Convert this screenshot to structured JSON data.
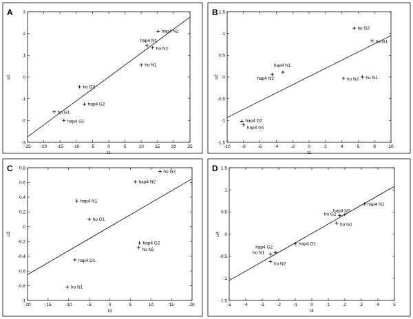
{
  "chart_data": [
    {
      "panel": "A",
      "type": "scatter",
      "xlabel": "t1",
      "ylabel": "u1",
      "xlim": [
        -25,
        25
      ],
      "ylim": [
        -3,
        3
      ],
      "xticks": [
        -25,
        -20,
        -15,
        -10,
        -5,
        0,
        5,
        10,
        15,
        20,
        25
      ],
      "yticks": [
        -3,
        -2,
        -1,
        0,
        1,
        2,
        3
      ],
      "points": [
        {
          "label": "hap4 N2",
          "x": 15.2,
          "y": 2.1
        },
        {
          "label": "hap4 N1",
          "x": 11.8,
          "y": 1.45
        },
        {
          "label": "ho N2",
          "x": 13.5,
          "y": 1.35
        },
        {
          "label": "ho N1",
          "x": 10.0,
          "y": 0.55
        },
        {
          "label": "ho G2",
          "x": -9.0,
          "y": -0.45
        },
        {
          "label": "hap4 G2",
          "x": -7.5,
          "y": -1.25
        },
        {
          "label": "ho G1",
          "x": -16.8,
          "y": -1.6
        },
        {
          "label": "hap4 G1",
          "x": -13.8,
          "y": -2.0
        }
      ],
      "fit_line": {
        "x": [
          -25,
          25
        ],
        "y": [
          -2.75,
          2.75
        ]
      }
    },
    {
      "panel": "B",
      "type": "scatter",
      "xlabel": "t2",
      "ylabel": "u2",
      "xlim": [
        -10,
        10
      ],
      "ylim": [
        -1.5,
        1.5
      ],
      "xticks": [
        -10,
        -8,
        -6,
        -4,
        -2,
        0,
        2,
        4,
        6,
        8,
        10
      ],
      "yticks": [
        -1.5,
        -1,
        -0.5,
        0,
        0.5,
        1,
        1.5
      ],
      "points": [
        {
          "label": "ho G2",
          "x": 5.5,
          "y": 1.12
        },
        {
          "label": "ho G1",
          "x": 7.7,
          "y": 0.83
        },
        {
          "label": "hap4 N1",
          "x": -3.2,
          "y": 0.11
        },
        {
          "label": "hap4 N2",
          "x": -4.5,
          "y": 0.06
        },
        {
          "label": "ho N2",
          "x": 4.2,
          "y": -0.03
        },
        {
          "label": "ho N1",
          "x": 6.5,
          "y": 0.0
        },
        {
          "label": "hap4 G2",
          "x": -8.2,
          "y": -1.02
        },
        {
          "label": "hap4 G1",
          "x": -8.0,
          "y": -1.1
        }
      ],
      "fit_line": {
        "x": [
          -10,
          10
        ],
        "y": [
          -0.93,
          0.95
        ]
      }
    },
    {
      "panel": "C",
      "type": "scatter",
      "xlabel": "t3",
      "ylabel": "u3",
      "xlim": [
        -20,
        20
      ],
      "ylim": [
        -1,
        0.8
      ],
      "xticks": [
        -20,
        -15,
        -10,
        -5,
        0,
        5,
        10,
        15,
        20
      ],
      "yticks": [
        -1,
        -0.8,
        -0.6,
        -0.4,
        -0.2,
        0,
        0.2,
        0.4,
        0.6,
        0.8
      ],
      "points": [
        {
          "label": "ho G2",
          "x": 12.2,
          "y": 0.75
        },
        {
          "label": "hap4 N2",
          "x": 6.2,
          "y": 0.61
        },
        {
          "label": "hap4 N1",
          "x": -8.0,
          "y": 0.35
        },
        {
          "label": "ho G1",
          "x": -5.0,
          "y": 0.1
        },
        {
          "label": "hap4 G2",
          "x": 7.2,
          "y": -0.22
        },
        {
          "label": "ho N2",
          "x": 7.0,
          "y": -0.28
        },
        {
          "label": "hap4 G1",
          "x": -8.5,
          "y": -0.45
        },
        {
          "label": "ho N1",
          "x": -10.3,
          "y": -0.82
        }
      ],
      "fit_line": {
        "x": [
          -20,
          20
        ],
        "y": [
          -0.65,
          0.65
        ]
      }
    },
    {
      "panel": "D",
      "type": "scatter",
      "xlabel": "t4",
      "ylabel": "u4",
      "xlim": [
        -5,
        5
      ],
      "ylim": [
        -1.5,
        1.5
      ],
      "xticks": [
        -5,
        -4,
        -3,
        -2,
        -1,
        0,
        1,
        2,
        3,
        4,
        5
      ],
      "yticks": [
        -1.5,
        -1,
        -0.5,
        0,
        0.5,
        1,
        1.5
      ],
      "points": [
        {
          "label": "hap4 N1",
          "x": 3.2,
          "y": 0.68
        },
        {
          "label": "hap4 N2",
          "x": 2.0,
          "y": 0.45
        },
        {
          "label": "ho G2",
          "x": 1.7,
          "y": 0.42
        },
        {
          "label": "ho G1",
          "x": 1.5,
          "y": 0.25
        },
        {
          "label": "hap4 G1",
          "x": -1.0,
          "y": -0.22
        },
        {
          "label": "hap4 G2",
          "x": -2.2,
          "y": -0.42
        },
        {
          "label": "ho N1",
          "x": -2.5,
          "y": -0.45
        },
        {
          "label": "ho N2",
          "x": -2.5,
          "y": -0.62
        }
      ],
      "fit_line": {
        "x": [
          -5,
          5
        ],
        "y": [
          -1.05,
          1.08
        ]
      }
    }
  ]
}
